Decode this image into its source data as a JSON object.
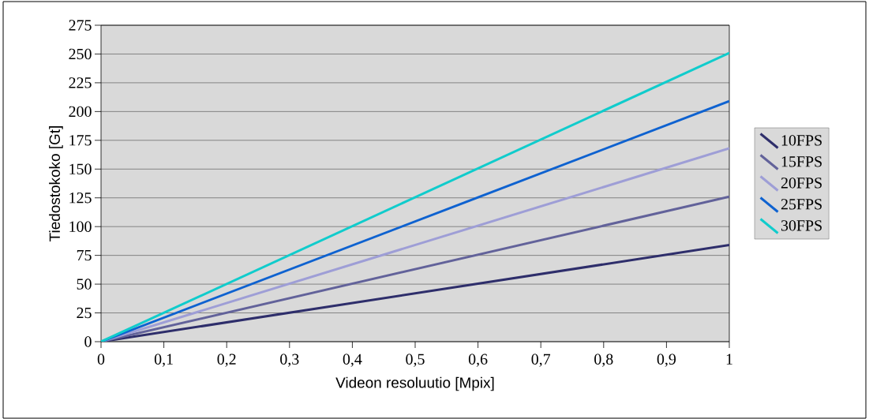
{
  "chart_data": {
    "type": "line",
    "xlabel": "Videon resoluutio [Mpix]",
    "ylabel": "Tiedostokoko [Gt]",
    "x": [
      0,
      1
    ],
    "series": [
      {
        "name": "10FPS",
        "color": "#2e2e6b",
        "values": [
          0,
          84
        ]
      },
      {
        "name": "15FPS",
        "color": "#62629a",
        "values": [
          0,
          126
        ]
      },
      {
        "name": "20FPS",
        "color": "#9e9ed6",
        "values": [
          0,
          168
        ]
      },
      {
        "name": "25FPS",
        "color": "#0e62d0",
        "values": [
          0,
          209
        ]
      },
      {
        "name": "30FPS",
        "color": "#10cccc",
        "values": [
          0,
          251
        ]
      }
    ],
    "xlim": [
      0,
      1
    ],
    "ylim": [
      0,
      275
    ],
    "xticks": [
      0,
      {
        "value": 0.1,
        "label": "0,1"
      },
      {
        "value": 0.2,
        "label": "0,2"
      },
      {
        "value": 0.3,
        "label": "0,3"
      },
      {
        "value": 0.4,
        "label": "0,4"
      },
      {
        "value": 0.5,
        "label": "0,5"
      },
      {
        "value": 0.6,
        "label": "0,6"
      },
      {
        "value": 0.7,
        "label": "0,7"
      },
      {
        "value": 0.8,
        "label": "0,8"
      },
      {
        "value": 0.9,
        "label": "0,9"
      },
      1
    ],
    "yticks": [
      0,
      25,
      50,
      75,
      100,
      125,
      150,
      175,
      200,
      225,
      250,
      275
    ],
    "grid": "y",
    "legend": "right",
    "marker": "none",
    "line_style": "solid"
  }
}
